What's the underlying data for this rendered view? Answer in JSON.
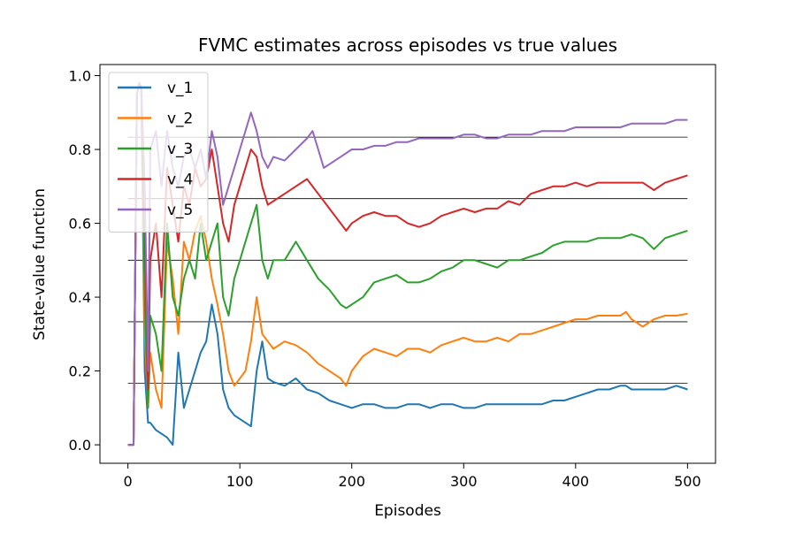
{
  "chart_data": {
    "type": "line",
    "title": "FVMC estimates across episodes vs true values",
    "xlabel": "Episodes",
    "ylabel": "State-value function",
    "xlim": [
      -25,
      525
    ],
    "ylim": [
      -0.05,
      1.03
    ],
    "xticks": [
      0,
      100,
      200,
      300,
      400,
      500
    ],
    "yticks": [
      0.0,
      0.2,
      0.4,
      0.6,
      0.8,
      1.0
    ],
    "xtick_labels": [
      "0",
      "100",
      "200",
      "300",
      "400",
      "500"
    ],
    "ytick_labels": [
      "0.0",
      "0.2",
      "0.4",
      "0.6",
      "0.8",
      "1.0"
    ],
    "grid": false,
    "legend_position": "top-left",
    "reference_lines": {
      "y": [
        0.1667,
        0.3333,
        0.5,
        0.6667,
        0.8333
      ],
      "x_range": [
        0,
        500
      ],
      "color": "#000000"
    },
    "series": [
      {
        "name": "v_1",
        "color": "#1f77b4",
        "x": [
          0,
          5,
          8,
          10,
          12,
          15,
          18,
          20,
          25,
          30,
          35,
          40,
          45,
          50,
          55,
          60,
          65,
          70,
          75,
          80,
          85,
          90,
          95,
          100,
          105,
          110,
          115,
          120,
          125,
          130,
          140,
          150,
          160,
          170,
          180,
          190,
          200,
          210,
          220,
          230,
          240,
          250,
          260,
          270,
          280,
          290,
          300,
          310,
          320,
          330,
          340,
          350,
          360,
          370,
          380,
          390,
          400,
          410,
          420,
          430,
          440,
          445,
          450,
          460,
          470,
          480,
          490,
          500
        ],
        "y": [
          0.0,
          0.0,
          0.95,
          0.98,
          0.96,
          0.2,
          0.06,
          0.06,
          0.04,
          0.03,
          0.02,
          0.0,
          0.25,
          0.1,
          0.15,
          0.2,
          0.25,
          0.28,
          0.38,
          0.3,
          0.15,
          0.1,
          0.08,
          0.07,
          0.06,
          0.05,
          0.2,
          0.28,
          0.18,
          0.17,
          0.16,
          0.18,
          0.15,
          0.14,
          0.12,
          0.11,
          0.1,
          0.11,
          0.11,
          0.1,
          0.1,
          0.11,
          0.11,
          0.1,
          0.11,
          0.11,
          0.1,
          0.1,
          0.11,
          0.11,
          0.11,
          0.11,
          0.11,
          0.11,
          0.12,
          0.12,
          0.13,
          0.14,
          0.15,
          0.15,
          0.16,
          0.16,
          0.15,
          0.15,
          0.15,
          0.15,
          0.16,
          0.15
        ]
      },
      {
        "name": "v_2",
        "color": "#ff7f0e",
        "x": [
          0,
          5,
          8,
          10,
          12,
          15,
          18,
          20,
          25,
          30,
          35,
          40,
          45,
          50,
          55,
          60,
          65,
          70,
          75,
          80,
          85,
          90,
          95,
          100,
          105,
          110,
          115,
          120,
          125,
          130,
          140,
          150,
          160,
          170,
          180,
          190,
          195,
          200,
          210,
          220,
          230,
          240,
          250,
          260,
          270,
          280,
          290,
          300,
          310,
          320,
          330,
          340,
          350,
          360,
          370,
          380,
          390,
          400,
          410,
          420,
          430,
          440,
          445,
          450,
          460,
          470,
          480,
          490,
          500
        ],
        "y": [
          0.0,
          0.0,
          0.95,
          0.98,
          0.96,
          0.3,
          0.1,
          0.25,
          0.15,
          0.1,
          0.55,
          0.45,
          0.3,
          0.55,
          0.5,
          0.58,
          0.62,
          0.55,
          0.45,
          0.38,
          0.3,
          0.2,
          0.16,
          0.18,
          0.2,
          0.28,
          0.4,
          0.3,
          0.28,
          0.26,
          0.28,
          0.27,
          0.25,
          0.22,
          0.2,
          0.18,
          0.16,
          0.2,
          0.24,
          0.26,
          0.25,
          0.24,
          0.26,
          0.26,
          0.25,
          0.27,
          0.28,
          0.29,
          0.28,
          0.28,
          0.29,
          0.28,
          0.3,
          0.3,
          0.31,
          0.32,
          0.33,
          0.34,
          0.34,
          0.35,
          0.35,
          0.35,
          0.36,
          0.34,
          0.32,
          0.34,
          0.35,
          0.35,
          0.355
        ]
      },
      {
        "name": "v_3",
        "color": "#2ca02c",
        "x": [
          0,
          5,
          8,
          10,
          12,
          15,
          18,
          20,
          25,
          30,
          35,
          40,
          45,
          50,
          55,
          60,
          65,
          70,
          75,
          80,
          85,
          90,
          95,
          100,
          105,
          110,
          115,
          120,
          125,
          130,
          140,
          150,
          160,
          170,
          180,
          190,
          195,
          200,
          210,
          220,
          230,
          240,
          250,
          260,
          270,
          280,
          290,
          300,
          310,
          320,
          330,
          340,
          350,
          360,
          370,
          380,
          390,
          400,
          410,
          420,
          430,
          440,
          450,
          460,
          470,
          480,
          490,
          500
        ],
        "y": [
          0.0,
          0.0,
          0.95,
          0.98,
          0.96,
          0.4,
          0.1,
          0.35,
          0.3,
          0.2,
          0.6,
          0.4,
          0.35,
          0.45,
          0.5,
          0.45,
          0.6,
          0.5,
          0.55,
          0.6,
          0.4,
          0.35,
          0.45,
          0.5,
          0.55,
          0.6,
          0.65,
          0.5,
          0.45,
          0.5,
          0.5,
          0.55,
          0.5,
          0.45,
          0.42,
          0.38,
          0.37,
          0.38,
          0.4,
          0.44,
          0.45,
          0.46,
          0.44,
          0.44,
          0.45,
          0.47,
          0.48,
          0.5,
          0.5,
          0.49,
          0.48,
          0.5,
          0.5,
          0.51,
          0.52,
          0.54,
          0.55,
          0.55,
          0.55,
          0.56,
          0.56,
          0.56,
          0.57,
          0.56,
          0.53,
          0.56,
          0.57,
          0.58
        ]
      },
      {
        "name": "v_4",
        "color": "#d62728",
        "x": [
          0,
          5,
          8,
          10,
          12,
          15,
          18,
          20,
          25,
          30,
          35,
          40,
          45,
          50,
          55,
          60,
          65,
          70,
          75,
          80,
          85,
          90,
          95,
          100,
          105,
          110,
          115,
          120,
          125,
          130,
          140,
          150,
          160,
          170,
          180,
          190,
          195,
          200,
          210,
          220,
          230,
          240,
          250,
          260,
          270,
          280,
          290,
          300,
          310,
          320,
          330,
          340,
          350,
          360,
          370,
          380,
          390,
          400,
          410,
          420,
          430,
          440,
          450,
          460,
          470,
          480,
          490,
          500
        ],
        "y": [
          0.0,
          0.0,
          0.95,
          0.98,
          0.96,
          0.6,
          0.15,
          0.5,
          0.6,
          0.4,
          0.75,
          0.65,
          0.55,
          0.7,
          0.65,
          0.75,
          0.7,
          0.72,
          0.8,
          0.7,
          0.6,
          0.55,
          0.65,
          0.7,
          0.75,
          0.8,
          0.78,
          0.7,
          0.65,
          0.66,
          0.68,
          0.7,
          0.72,
          0.68,
          0.64,
          0.6,
          0.58,
          0.6,
          0.62,
          0.63,
          0.62,
          0.62,
          0.6,
          0.59,
          0.6,
          0.62,
          0.63,
          0.64,
          0.63,
          0.64,
          0.64,
          0.66,
          0.65,
          0.68,
          0.69,
          0.7,
          0.7,
          0.71,
          0.7,
          0.71,
          0.71,
          0.71,
          0.71,
          0.71,
          0.69,
          0.71,
          0.72,
          0.73
        ]
      },
      {
        "name": "v_5",
        "color": "#9467bd",
        "x": [
          0,
          5,
          8,
          10,
          12,
          15,
          18,
          20,
          25,
          30,
          35,
          40,
          45,
          50,
          55,
          60,
          65,
          70,
          75,
          80,
          85,
          90,
          95,
          100,
          105,
          110,
          115,
          120,
          125,
          130,
          140,
          150,
          160,
          165,
          170,
          175,
          180,
          190,
          200,
          210,
          220,
          230,
          240,
          250,
          260,
          270,
          280,
          290,
          300,
          310,
          320,
          330,
          340,
          350,
          360,
          370,
          380,
          390,
          400,
          410,
          420,
          430,
          440,
          450,
          460,
          470,
          480,
          490,
          500
        ],
        "y": [
          0.0,
          0.0,
          0.95,
          0.98,
          0.97,
          0.7,
          0.2,
          0.8,
          0.85,
          0.7,
          0.85,
          0.75,
          0.7,
          0.78,
          0.8,
          0.75,
          0.8,
          0.72,
          0.85,
          0.78,
          0.65,
          0.7,
          0.75,
          0.8,
          0.85,
          0.9,
          0.85,
          0.78,
          0.75,
          0.78,
          0.77,
          0.8,
          0.83,
          0.85,
          0.8,
          0.75,
          0.76,
          0.78,
          0.8,
          0.8,
          0.81,
          0.81,
          0.82,
          0.82,
          0.83,
          0.83,
          0.83,
          0.83,
          0.84,
          0.84,
          0.83,
          0.83,
          0.84,
          0.84,
          0.84,
          0.85,
          0.85,
          0.85,
          0.86,
          0.86,
          0.86,
          0.86,
          0.86,
          0.87,
          0.87,
          0.87,
          0.87,
          0.88,
          0.88
        ]
      }
    ]
  }
}
